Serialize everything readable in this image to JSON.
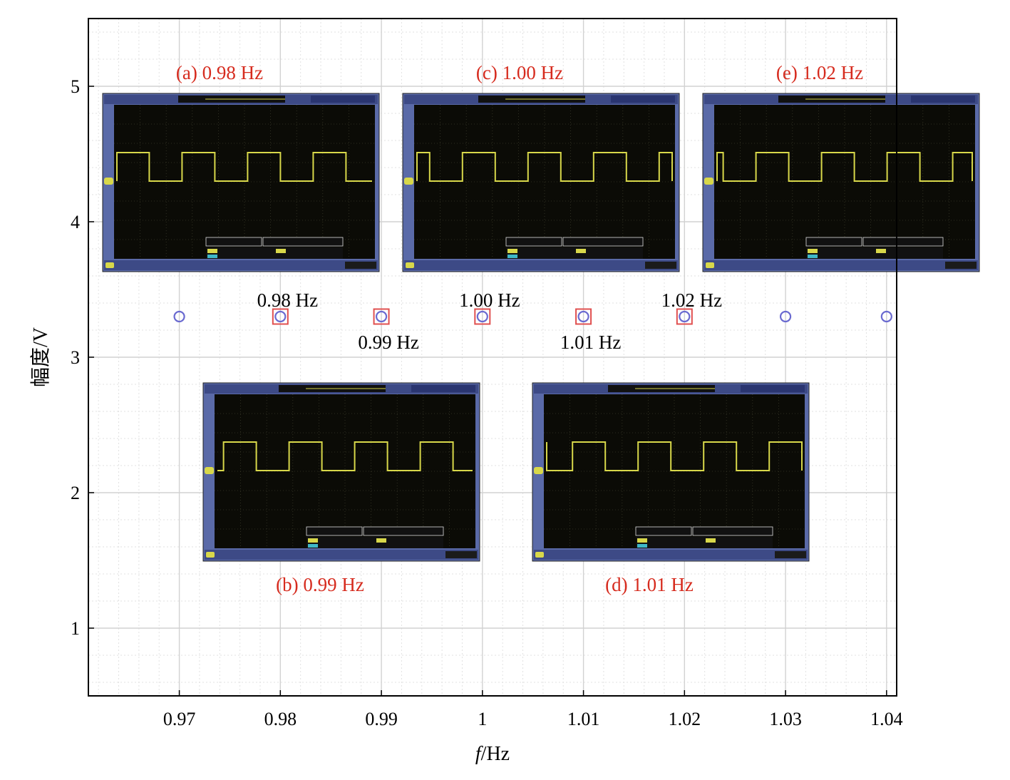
{
  "chart_data": {
    "type": "scatter",
    "xlabel_italic": "f",
    "xlabel_unit": "/Hz",
    "ylabel": "幅度/V",
    "xlim": [
      0.961,
      1.041
    ],
    "ylim": [
      0.5,
      5.5
    ],
    "x_ticks": [
      "0.97",
      "0.98",
      "0.99",
      "1",
      "1.01",
      "1.02",
      "1.03",
      "1.04"
    ],
    "x_tick_values": [
      0.97,
      0.98,
      0.99,
      1.0,
      1.01,
      1.02,
      1.03,
      1.04
    ],
    "y_ticks": [
      "1",
      "2",
      "3",
      "4",
      "5"
    ],
    "y_tick_values": [
      1,
      2,
      3,
      4,
      5
    ],
    "grid": true,
    "series": [
      {
        "marker": "circle",
        "color": "#6a6ad0",
        "x": [
          0.97,
          0.98,
          0.99,
          1.0,
          1.01,
          1.02,
          1.03,
          1.04
        ],
        "y": [
          3.3,
          3.3,
          3.3,
          3.3,
          3.3,
          3.3,
          3.3,
          3.3
        ]
      },
      {
        "marker": "square",
        "color": "#e05050",
        "x": [
          0.98,
          0.99,
          1.0,
          1.01,
          1.02
        ],
        "y": [
          3.3,
          3.3,
          3.3,
          3.3,
          3.3
        ]
      }
    ],
    "point_labels": [
      {
        "text": "0.98 Hz",
        "x": 0.98,
        "position": "above"
      },
      {
        "text": "0.99 Hz",
        "x": 0.99,
        "position": "below"
      },
      {
        "text": "1.00 Hz",
        "x": 1.0,
        "position": "above"
      },
      {
        "text": "1.01 Hz",
        "x": 1.01,
        "position": "below"
      },
      {
        "text": "1.02 Hz",
        "x": 1.02,
        "position": "above"
      }
    ],
    "insets": [
      {
        "caption": "(a) 0.98 Hz",
        "caption_position": "above",
        "phase": 0.1
      },
      {
        "caption": "(b) 0.99 Hz",
        "caption_position": "below",
        "phase": 0.0
      },
      {
        "caption": "(c) 1.00 Hz",
        "caption_position": "above",
        "phase": 0.4
      },
      {
        "caption": "(d) 1.01 Hz",
        "caption_position": "below",
        "phase": 0.7
      },
      {
        "caption": "(e) 1.02 Hz",
        "caption_position": "above",
        "phase": 0.5
      }
    ]
  },
  "colors": {
    "caption": "#d62b1e",
    "scope_frame": "#5a6aa8",
    "scope_screen": "#0b0b06",
    "scope_trace": "#d8d84a",
    "scope_label": "#d8d84a"
  }
}
